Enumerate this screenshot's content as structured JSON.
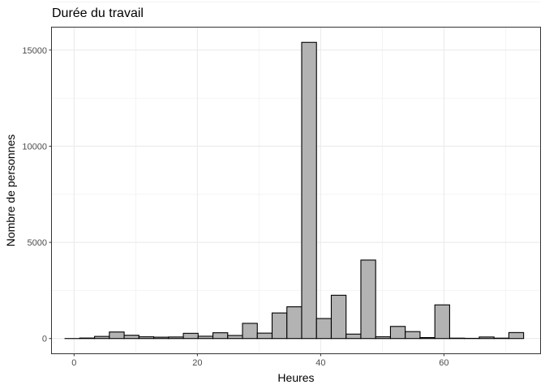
{
  "chart_data": {
    "type": "bar",
    "title": "Durée du travail",
    "xlabel": "Heures",
    "ylabel": "Nombre de personnes",
    "xlim": [
      -3.6,
      75.6
    ],
    "ylim": [
      -770,
      16170
    ],
    "x_ticks": [
      0,
      20,
      40,
      60
    ],
    "y_ticks": [
      0,
      5000,
      10000,
      15000
    ],
    "x_tick_labels": [
      "0",
      "20",
      "40",
      "60"
    ],
    "y_tick_labels": [
      "0",
      "5000",
      "10000",
      "15000"
    ],
    "grid": true,
    "legend": "none",
    "bin_width": 2.4,
    "bin_centers": [
      -0.28,
      2.12,
      4.52,
      6.92,
      9.32,
      11.72,
      14.12,
      16.52,
      18.92,
      21.32,
      23.72,
      26.12,
      28.52,
      30.92,
      33.32,
      35.72,
      38.12,
      40.52,
      42.92,
      45.32,
      47.72,
      50.12,
      52.52,
      54.92,
      57.32,
      59.72,
      62.12,
      64.52,
      66.92,
      69.32,
      71.72
    ],
    "values": [
      0,
      25,
      110,
      340,
      170,
      90,
      70,
      80,
      270,
      120,
      300,
      160,
      790,
      280,
      1330,
      1650,
      15400,
      1040,
      2250,
      230,
      4080,
      90,
      630,
      360,
      50,
      1750,
      20,
      10,
      80,
      20,
      310
    ],
    "colors": {
      "bar_fill": "#b3b3b3",
      "bar_stroke": "#000000",
      "grid": "#ebebeb",
      "panel_border": "#333333"
    }
  }
}
